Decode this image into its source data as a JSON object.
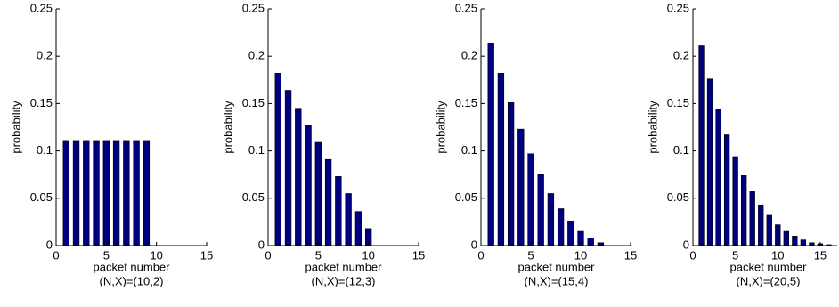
{
  "chart_data": [
    {
      "type": "bar",
      "xlabel": "packet number",
      "ylabel": "probability",
      "caption": "(N,X)=(10,2)",
      "color": "#00007f",
      "x": [
        1,
        2,
        3,
        4,
        5,
        6,
        7,
        8,
        9
      ],
      "values": [
        0.111,
        0.111,
        0.111,
        0.111,
        0.111,
        0.111,
        0.111,
        0.111,
        0.111
      ],
      "xlim": [
        0,
        15
      ],
      "xticks": [
        0,
        5,
        10,
        15
      ],
      "ylim": [
        0,
        0.25
      ],
      "yticks": [
        0,
        0.05,
        0.1,
        0.15,
        0.2,
        0.25
      ]
    },
    {
      "type": "bar",
      "xlabel": "packet number",
      "ylabel": "probability",
      "caption": "(N,X)=(12,3)",
      "color": "#00007f",
      "x": [
        1,
        2,
        3,
        4,
        5,
        6,
        7,
        8,
        9,
        10
      ],
      "values": [
        0.182,
        0.164,
        0.145,
        0.127,
        0.109,
        0.091,
        0.073,
        0.055,
        0.036,
        0.018
      ],
      "xlim": [
        0,
        15
      ],
      "xticks": [
        0,
        5,
        10,
        15
      ],
      "ylim": [
        0,
        0.25
      ],
      "yticks": [
        0,
        0.05,
        0.1,
        0.15,
        0.2,
        0.25
      ]
    },
    {
      "type": "bar",
      "xlabel": "packet number",
      "ylabel": "probability",
      "caption": "(N,X)=(15,4)",
      "color": "#00007f",
      "x": [
        1,
        2,
        3,
        4,
        5,
        6,
        7,
        8,
        9,
        10,
        11,
        12
      ],
      "values": [
        0.214,
        0.182,
        0.151,
        0.123,
        0.097,
        0.075,
        0.055,
        0.039,
        0.026,
        0.015,
        0.008,
        0.003
      ],
      "xlim": [
        0,
        15
      ],
      "xticks": [
        0,
        5,
        10,
        15
      ],
      "ylim": [
        0,
        0.25
      ],
      "yticks": [
        0,
        0.05,
        0.1,
        0.15,
        0.2,
        0.25
      ]
    },
    {
      "type": "bar",
      "xlabel": "packet number",
      "ylabel": "probability",
      "caption": "(N,X)=(20,5)",
      "color": "#00007f",
      "x": [
        1,
        2,
        3,
        4,
        5,
        6,
        7,
        8,
        9,
        10,
        11,
        12,
        13,
        14,
        15,
        16
      ],
      "values": [
        0.211,
        0.176,
        0.144,
        0.117,
        0.094,
        0.074,
        0.057,
        0.043,
        0.032,
        0.022,
        0.015,
        0.01,
        0.006,
        0.003,
        0.002,
        0.001
      ],
      "xlim": [
        0,
        17
      ],
      "xticks": [
        0,
        5,
        10,
        15
      ],
      "ylim": [
        0,
        0.25
      ],
      "yticks": [
        0,
        0.05,
        0.1,
        0.15,
        0.2,
        0.25
      ]
    }
  ]
}
